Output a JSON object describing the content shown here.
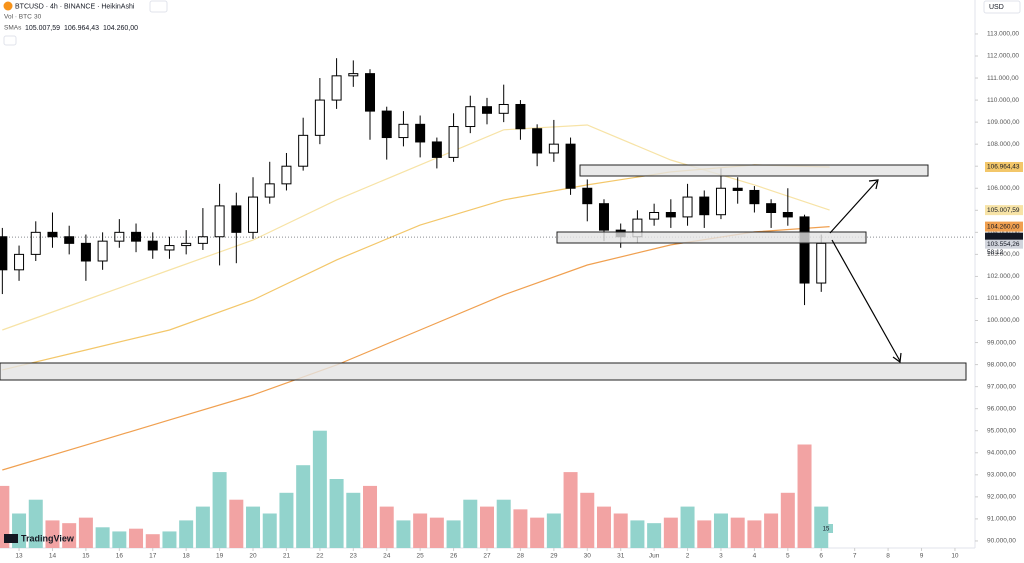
{
  "chart_data": {
    "type": "candlestick",
    "title": "BTCUSD · 4h · BINANCE · HeikinAshi",
    "volume_title": "Vol · BTC",
    "volume_setting": "30",
    "sma_title": "SMAs",
    "currency": "USD",
    "brand": "TradingView",
    "bull_color": "#ffffff",
    "bear_color": "#000000",
    "volume_bull_color": "#92d3cc",
    "volume_bear_color": "#f2a3a3",
    "x": [
      12.5,
      13,
      13.5,
      14,
      14.5,
      15,
      15.5,
      16,
      16.5,
      17,
      17.5,
      18,
      18.5,
      19,
      19.5,
      20,
      20.5,
      21,
      21.5,
      22,
      22.5,
      23,
      23.5,
      24,
      24.5,
      25,
      25.5,
      26,
      26.5,
      27,
      27.5,
      28,
      28.5,
      29,
      29.5,
      30,
      30.5,
      31,
      31.5,
      32,
      32.5,
      33,
      33.5,
      34,
      34.5,
      35,
      35.5,
      36,
      36.5,
      37
    ],
    "open": [
      103800,
      102300,
      103000,
      104000,
      103800,
      103500,
      102700,
      103600,
      104000,
      103600,
      103200,
      103400,
      103500,
      103800,
      105200,
      104000,
      105600,
      106200,
      107000,
      108400,
      110000,
      111100,
      111200,
      109500,
      108300,
      108900,
      108100,
      107400,
      108800,
      109700,
      109400,
      109800,
      108700,
      107600,
      108000,
      106000,
      105300,
      104100,
      103800,
      104600,
      104900,
      104700,
      105600,
      104800,
      106000,
      105900,
      105300,
      104900,
      104700,
      101700
    ],
    "high": [
      104200,
      103400,
      104500,
      104900,
      104300,
      103900,
      104000,
      104600,
      104400,
      104000,
      103800,
      104100,
      105100,
      106200,
      105800,
      106500,
      107200,
      107600,
      109200,
      111000,
      111900,
      111800,
      111400,
      109700,
      109500,
      109300,
      108300,
      109400,
      110200,
      110100,
      110700,
      110000,
      108900,
      109100,
      108300,
      106400,
      105500,
      104400,
      105000,
      105300,
      105500,
      106200,
      105900,
      106900,
      106500,
      106100,
      105500,
      106000,
      104800,
      103900
    ],
    "low": [
      101200,
      101800,
      102700,
      103300,
      103000,
      101800,
      102300,
      103300,
      103100,
      102800,
      102800,
      103000,
      103200,
      102500,
      102600,
      103700,
      105300,
      105900,
      106800,
      108000,
      109600,
      110600,
      108200,
      107300,
      107900,
      107400,
      106900,
      107200,
      108500,
      108900,
      109000,
      108200,
      107000,
      107200,
      105700,
      104500,
      103600,
      103300,
      103500,
      104300,
      104200,
      104300,
      104200,
      104600,
      105300,
      104900,
      104200,
      104300,
      100700,
      101300
    ],
    "close": [
      102300,
      103000,
      104000,
      103800,
      103500,
      102700,
      103600,
      104000,
      103600,
      103200,
      103400,
      103500,
      103800,
      105200,
      104000,
      105600,
      106200,
      107000,
      108400,
      110000,
      111100,
      111200,
      109500,
      108300,
      108900,
      108100,
      107400,
      108800,
      109700,
      109400,
      109800,
      108700,
      107600,
      108000,
      106000,
      105300,
      104100,
      103800,
      104600,
      104900,
      104700,
      105600,
      104800,
      106000,
      105900,
      105300,
      104900,
      104700,
      101700,
      103500
    ],
    "volume": [
      45,
      25,
      35,
      20,
      18,
      22,
      15,
      12,
      14,
      10,
      12,
      20,
      30,
      55,
      35,
      30,
      25,
      40,
      60,
      85,
      50,
      40,
      45,
      30,
      20,
      25,
      22,
      20,
      35,
      30,
      35,
      28,
      22,
      25,
      55,
      40,
      30,
      25,
      20,
      18,
      22,
      30,
      20,
      25,
      22,
      20,
      25,
      40,
      75,
      30
    ],
    "volume_ylim": [
      0,
      100
    ],
    "volume_label": "15",
    "overlays": [
      {
        "color": "#f7e3a6",
        "x": [
          12.5,
          15,
          17.5,
          20,
          22.5,
          25,
          27.5,
          30,
          32.5,
          35,
          37.25
        ],
        "values": [
          99570,
          100930,
          102290,
          103650,
          105470,
          107060,
          108650,
          108870,
          107280,
          106150,
          105007.59
        ],
        "last_label": "105.007,59"
      },
      {
        "color": "#f3c76a",
        "x": [
          12.5,
          15,
          17.5,
          20,
          22.5,
          25,
          27.5,
          30,
          32.5,
          35,
          37.25
        ],
        "values": [
          97760,
          98660,
          99570,
          100930,
          102750,
          104330,
          105470,
          106150,
          106740,
          107060,
          106964.43
        ],
        "last_label": "106.964,43"
      },
      {
        "color": "#f0a050",
        "x": [
          12.5,
          15,
          17.5,
          20,
          22.5,
          25,
          27.5,
          30,
          32.5,
          35,
          37.25
        ],
        "values": [
          93220,
          94350,
          95490,
          96620,
          97980,
          99570,
          101160,
          102520,
          103430,
          104020,
          104260
        ],
        "last_label": "104.260,00"
      }
    ],
    "price_badges": [
      {
        "value": 103782.32,
        "label": "103.782,32",
        "color": "#131722"
      },
      {
        "value": 103554.26,
        "label": "103.554,26",
        "color": "#d1d4dc"
      }
    ],
    "countdown": "58:12",
    "xlim": [
      12.43,
      41.6
    ],
    "ylim": [
      89680,
      114540
    ],
    "xticks": [
      13,
      14,
      15,
      16,
      17,
      18,
      19,
      20,
      21,
      22,
      23,
      24,
      25,
      26,
      27,
      28,
      29,
      30,
      31,
      {
        "value": 32,
        "label": "Jun"
      },
      {
        "value": 33,
        "label": "2"
      },
      {
        "value": 34,
        "label": "3"
      },
      {
        "value": 35,
        "label": "4"
      },
      {
        "value": 36,
        "label": "5"
      },
      {
        "value": 37,
        "label": "6"
      },
      {
        "value": 38,
        "label": "7"
      },
      {
        "value": 39,
        "label": "8"
      },
      {
        "value": 40,
        "label": "9"
      },
      {
        "value": 41,
        "label": "10"
      }
    ],
    "yticks": [
      {
        "value": 90000,
        "label": "90.000,00"
      },
      {
        "value": 91000,
        "label": "91.000,00"
      },
      {
        "value": 92000,
        "label": "92.000,00"
      },
      {
        "value": 93000,
        "label": "93.000,00"
      },
      {
        "value": 94000,
        "label": "94.000,00"
      },
      {
        "value": 95000,
        "label": "95.000,00"
      },
      {
        "value": 96000,
        "label": "96.000,00"
      },
      {
        "value": 97000,
        "label": "97.000,00"
      },
      {
        "value": 98000,
        "label": "98.000,00"
      },
      {
        "value": 99000,
        "label": "99.000,00"
      },
      {
        "value": 100000,
        "label": "100.000,00"
      },
      {
        "value": 101000,
        "label": "101.000,00"
      },
      {
        "value": 102000,
        "label": "102.000,00"
      },
      {
        "value": 103000,
        "label": "103.000,00"
      },
      {
        "value": 104000,
        "label": "104.000,00"
      },
      {
        "value": 105000,
        "label": "105.000,00"
      },
      {
        "value": 106000,
        "label": "106.000,00"
      },
      {
        "value": 107000,
        "label": "107.000,00"
      },
      {
        "value": 108000,
        "label": "108.000,00"
      },
      {
        "value": 109000,
        "label": "109.000,00"
      },
      {
        "value": 110000,
        "label": "110.000,00"
      },
      {
        "value": 111000,
        "label": "111.000,00"
      },
      {
        "value": 112000,
        "label": "112.000,00"
      },
      {
        "value": 113000,
        "label": "113.000,00"
      }
    ]
  }
}
